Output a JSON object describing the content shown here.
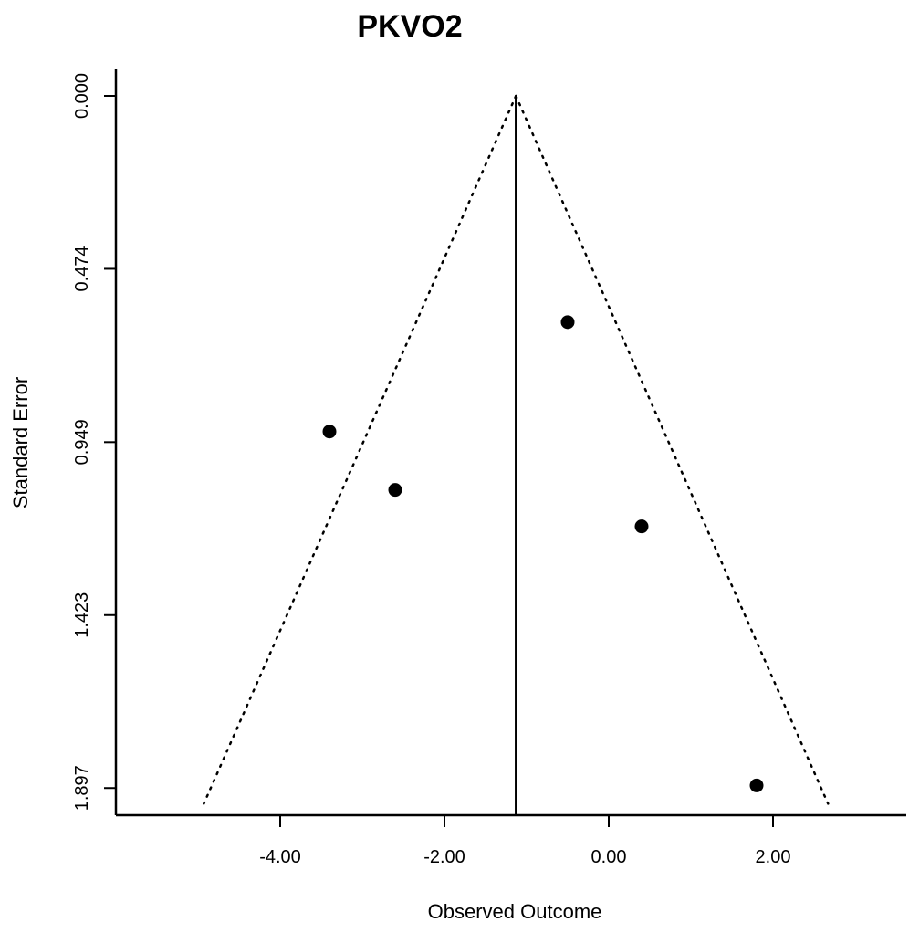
{
  "chart_data": {
    "type": "scatter",
    "title": "PKVO2",
    "xlabel": "Observed Outcome",
    "ylabel": "Standard Error",
    "xlim": [
      -5.4,
      3.6
    ],
    "ylim": [
      0.0,
      1.897
    ],
    "y_reversed": true,
    "x_ticks": [
      -4.0,
      -2.0,
      0.0,
      2.0
    ],
    "x_tick_labels": [
      "-4.00",
      "-2.00",
      "0.00",
      "2.00"
    ],
    "y_ticks": [
      0.0,
      0.474,
      0.949,
      1.423,
      1.897
    ],
    "y_tick_labels": [
      "0.000",
      "0.474",
      "0.949",
      "1.423",
      "1.897"
    ],
    "summary_estimate": -1.13,
    "funnel": {
      "apex": [
        -1.13,
        0.0
      ],
      "left_base": [
        -4.93,
        1.94
      ],
      "right_base": [
        2.67,
        1.94
      ]
    },
    "points": [
      {
        "x": -3.4,
        "y": 0.92
      },
      {
        "x": -2.6,
        "y": 1.08
      },
      {
        "x": -0.5,
        "y": 0.62
      },
      {
        "x": 0.4,
        "y": 1.18
      },
      {
        "x": 1.8,
        "y": 1.89
      }
    ],
    "colors": {
      "points": "#000000",
      "lines": "#000000"
    },
    "grid": false
  }
}
